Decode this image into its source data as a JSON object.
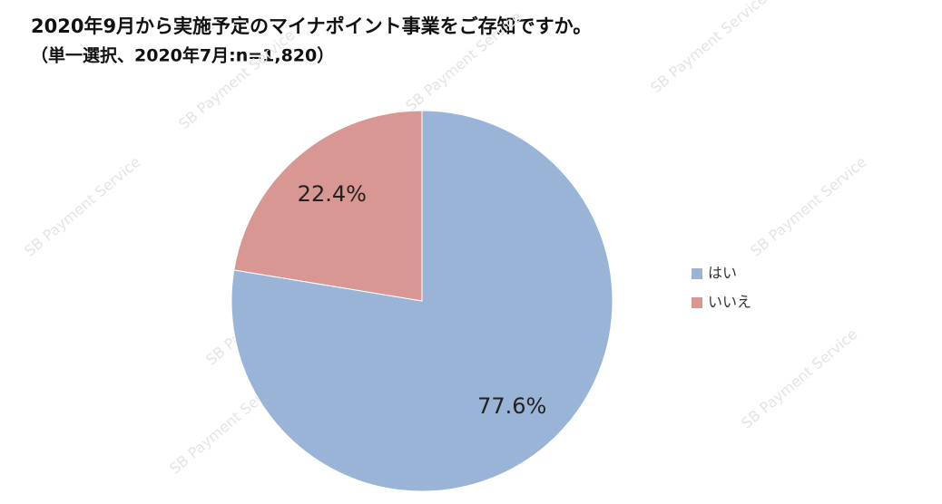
{
  "chart_data": {
    "type": "pie",
    "title": "2020年9月から実施予定のマイナポイント事業をご存知ですか。",
    "subtitle": "（単一選択、2020年7月:n=1,820）",
    "categories": [
      "はい",
      "いいえ"
    ],
    "values": [
      77.6,
      22.4
    ],
    "value_labels": [
      "77.6%",
      "22.4%"
    ],
    "colors": [
      "#9ab4d8",
      "#d99794"
    ],
    "legend": "right",
    "watermark": "SB Payment Service"
  }
}
